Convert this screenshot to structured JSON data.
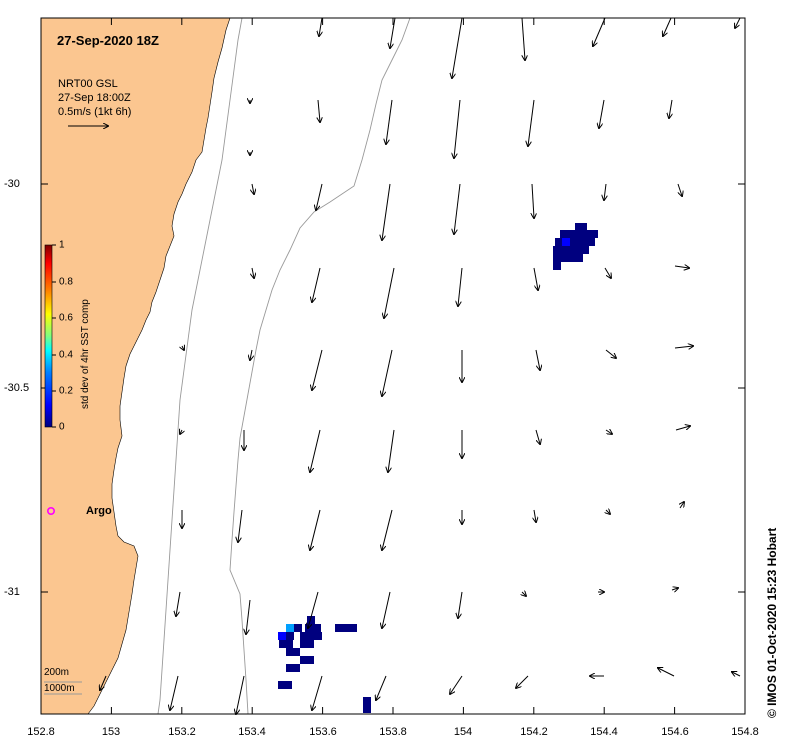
{
  "title": "27-Sep-2020 18Z",
  "info_lines": [
    "NRT00 GSL",
    "27-Sep 18:00Z",
    "0.5m/s (1kt 6h)"
  ],
  "credit": "© IMOS 01-Oct-2020 15:23 Hobart",
  "colorbar": {
    "label": "std dev of 4hr SST comp",
    "ticks": [
      "1",
      "0.8",
      "0.6",
      "0.4",
      "0.2",
      "0"
    ],
    "colors": [
      "#7f0000",
      "#ff0000",
      "#ff8000",
      "#ffff00",
      "#80ff80",
      "#00ffff",
      "#0080ff",
      "#0000ff",
      "#00007f"
    ]
  },
  "x_ticks": [
    "152.8",
    "153",
    "153.2",
    "153.4",
    "153.6",
    "153.8",
    "154",
    "154.2",
    "154.4",
    "154.6",
    "154.8"
  ],
  "y_ticks": [
    "-30",
    "-30.5",
    "-31"
  ],
  "argo_label": "Argo",
  "depth_labels": [
    "200m",
    "1000m"
  ],
  "colors": {
    "land": "#fbc690",
    "argo": "#ff00ff",
    "sst_low": "#00007f",
    "sst_mid": "#0000ff",
    "sst_light": "#00a0ff"
  }
}
